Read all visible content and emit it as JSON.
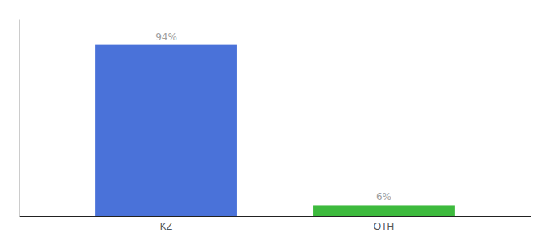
{
  "chart_data": {
    "type": "bar",
    "categories": [
      "KZ",
      "OTH"
    ],
    "values": [
      94,
      6
    ],
    "colors": [
      "#4a72d9",
      "#3dba3d"
    ],
    "ylim": [
      0,
      108
    ],
    "data_labels": true,
    "value_labels": [
      "94%",
      "6%"
    ],
    "tick_labels": "x"
  }
}
